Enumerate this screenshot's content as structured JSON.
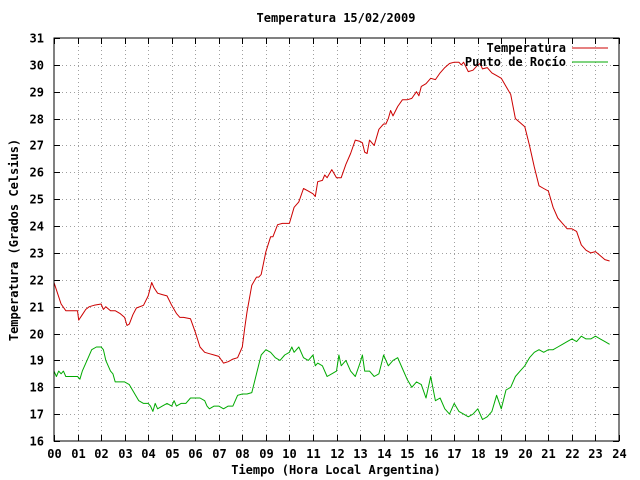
{
  "chart_data": {
    "type": "line",
    "title": "Temperatura 15/02/2009",
    "xlabel": "Tiempo (Hora Local Argentina)",
    "ylabel": "Temperatura (Grados Celsius)",
    "xlim": [
      0,
      24
    ],
    "ylim": [
      16,
      31
    ],
    "xticks": [
      "00",
      "01",
      "02",
      "03",
      "04",
      "05",
      "06",
      "07",
      "08",
      "09",
      "10",
      "11",
      "12",
      "13",
      "14",
      "15",
      "16",
      "17",
      "18",
      "19",
      "20",
      "21",
      "22",
      "23",
      "24"
    ],
    "yticks": [
      16,
      17,
      18,
      19,
      20,
      21,
      22,
      23,
      24,
      25,
      26,
      27,
      28,
      29,
      30,
      31
    ],
    "grid": true,
    "legend_position": "top-right",
    "series": [
      {
        "name": "Temperatura",
        "color": "#cc0000",
        "x": [
          0.0,
          0.15,
          0.3,
          0.5,
          0.8,
          1.0,
          1.05,
          1.2,
          1.35,
          1.5,
          1.7,
          2.0,
          2.1,
          2.2,
          2.4,
          2.6,
          2.8,
          3.0,
          3.1,
          3.2,
          3.35,
          3.5,
          3.8,
          4.0,
          4.15,
          4.25,
          4.4,
          4.6,
          4.8,
          5.0,
          5.2,
          5.35,
          5.5,
          5.8,
          6.0,
          6.2,
          6.4,
          6.6,
          6.8,
          7.0,
          7.2,
          7.4,
          7.6,
          7.8,
          8.0,
          8.1,
          8.2,
          8.4,
          8.6,
          8.7,
          8.8,
          9.0,
          9.2,
          9.3,
          9.5,
          9.7,
          10.0,
          10.2,
          10.4,
          10.6,
          10.8,
          11.0,
          11.1,
          11.2,
          11.4,
          11.5,
          11.6,
          11.8,
          12.0,
          12.2,
          12.4,
          12.6,
          12.8,
          13.0,
          13.1,
          13.2,
          13.3,
          13.4,
          13.6,
          13.8,
          14.0,
          14.1,
          14.2,
          14.3,
          14.4,
          14.6,
          14.8,
          15.0,
          15.2,
          15.4,
          15.5,
          15.6,
          15.8,
          16.0,
          16.2,
          16.4,
          16.6,
          16.8,
          17.0,
          17.2,
          17.3,
          17.4,
          17.6,
          17.8,
          18.0,
          18.1,
          18.2,
          18.4,
          18.6,
          18.8,
          19.0,
          19.2,
          19.4,
          19.6,
          19.8,
          20.0,
          20.2,
          20.4,
          20.6,
          20.8,
          21.0,
          21.2,
          21.4,
          21.6,
          21.8,
          22.0,
          22.2,
          22.4,
          22.6,
          22.8,
          23.0,
          23.2,
          23.4,
          23.6
        ],
        "values": [
          21.9,
          21.5,
          21.1,
          20.85,
          20.85,
          20.85,
          20.5,
          20.7,
          20.9,
          21.0,
          21.05,
          21.1,
          20.9,
          21.0,
          20.85,
          20.85,
          20.75,
          20.6,
          20.3,
          20.35,
          20.7,
          20.95,
          21.05,
          21.4,
          21.9,
          21.7,
          21.5,
          21.45,
          21.4,
          21.05,
          20.75,
          20.6,
          20.6,
          20.55,
          20.05,
          19.5,
          19.3,
          19.25,
          19.2,
          19.15,
          18.9,
          18.95,
          19.05,
          19.1,
          19.5,
          20.2,
          20.8,
          21.8,
          22.1,
          22.1,
          22.2,
          23.05,
          23.6,
          23.6,
          24.05,
          24.1,
          24.1,
          24.7,
          24.9,
          25.4,
          25.3,
          25.2,
          25.1,
          25.65,
          25.7,
          25.9,
          25.8,
          26.1,
          25.8,
          25.8,
          26.3,
          26.7,
          27.2,
          27.15,
          27.1,
          26.75,
          26.7,
          27.2,
          27.0,
          27.6,
          27.8,
          27.8,
          28.0,
          28.3,
          28.1,
          28.45,
          28.7,
          28.7,
          28.75,
          29.0,
          28.85,
          29.2,
          29.3,
          29.5,
          29.45,
          29.7,
          29.9,
          30.05,
          30.1,
          30.1,
          30.0,
          30.1,
          29.75,
          29.8,
          30.0,
          30.05,
          29.85,
          29.9,
          29.7,
          29.6,
          29.5,
          29.2,
          28.9,
          28.0,
          27.85,
          27.7,
          27.0,
          26.2,
          25.5,
          25.4,
          25.3,
          24.7,
          24.3,
          24.1,
          23.9,
          23.9,
          23.8,
          23.3,
          23.1,
          23.0,
          23.05,
          22.9,
          22.75,
          22.7
        ]
      },
      {
        "name": "Punto de Rocío",
        "color": "#00aa00",
        "x": [
          0.0,
          0.1,
          0.2,
          0.3,
          0.4,
          0.5,
          0.7,
          0.9,
          1.0,
          1.1,
          1.2,
          1.4,
          1.6,
          1.8,
          2.0,
          2.1,
          2.2,
          2.4,
          2.5,
          2.6,
          2.8,
          3.0,
          3.2,
          3.4,
          3.6,
          3.8,
          4.0,
          4.1,
          4.2,
          4.3,
          4.4,
          4.6,
          4.8,
          5.0,
          5.1,
          5.2,
          5.4,
          5.6,
          5.8,
          6.0,
          6.2,
          6.4,
          6.5,
          6.6,
          6.8,
          7.0,
          7.2,
          7.4,
          7.6,
          7.8,
          8.0,
          8.2,
          8.4,
          8.6,
          8.8,
          9.0,
          9.2,
          9.4,
          9.6,
          9.8,
          10.0,
          10.1,
          10.2,
          10.4,
          10.6,
          10.8,
          11.0,
          11.1,
          11.2,
          11.4,
          11.6,
          11.8,
          12.0,
          12.1,
          12.2,
          12.4,
          12.6,
          12.8,
          13.0,
          13.1,
          13.2,
          13.4,
          13.6,
          13.8,
          14.0,
          14.2,
          14.4,
          14.6,
          14.8,
          15.0,
          15.2,
          15.4,
          15.6,
          15.8,
          16.0,
          16.2,
          16.4,
          16.6,
          16.8,
          17.0,
          17.2,
          17.4,
          17.6,
          17.8,
          18.0,
          18.2,
          18.4,
          18.6,
          18.8,
          19.0,
          19.2,
          19.4,
          19.6,
          19.8,
          20.0,
          20.2,
          20.4,
          20.6,
          20.8,
          21.0,
          21.2,
          21.4,
          21.6,
          21.8,
          22.0,
          22.2,
          22.4,
          22.6,
          22.8,
          23.0,
          23.2,
          23.4,
          23.6
        ],
        "values": [
          18.6,
          18.4,
          18.6,
          18.5,
          18.6,
          18.4,
          18.4,
          18.4,
          18.4,
          18.3,
          18.6,
          19.0,
          19.4,
          19.5,
          19.5,
          19.4,
          19.0,
          18.6,
          18.5,
          18.2,
          18.2,
          18.2,
          18.1,
          17.8,
          17.5,
          17.4,
          17.4,
          17.3,
          17.1,
          17.4,
          17.2,
          17.3,
          17.4,
          17.3,
          17.5,
          17.3,
          17.4,
          17.4,
          17.6,
          17.6,
          17.6,
          17.5,
          17.3,
          17.2,
          17.3,
          17.3,
          17.2,
          17.3,
          17.3,
          17.7,
          17.75,
          17.75,
          17.8,
          18.5,
          19.2,
          19.4,
          19.3,
          19.1,
          19.0,
          19.2,
          19.3,
          19.5,
          19.3,
          19.5,
          19.1,
          19.0,
          19.2,
          18.8,
          18.9,
          18.8,
          18.4,
          18.5,
          18.6,
          19.2,
          18.8,
          19.0,
          18.6,
          18.4,
          18.9,
          19.2,
          18.6,
          18.6,
          18.4,
          18.5,
          19.2,
          18.8,
          19.0,
          19.1,
          18.7,
          18.3,
          18.0,
          18.2,
          18.1,
          17.6,
          18.4,
          17.5,
          17.6,
          17.2,
          17.0,
          17.4,
          17.1,
          17.0,
          16.9,
          17.0,
          17.2,
          16.8,
          16.9,
          17.1,
          17.7,
          17.2,
          17.9,
          18.0,
          18.4,
          18.6,
          18.8,
          19.1,
          19.3,
          19.4,
          19.3,
          19.4,
          19.4,
          19.5,
          19.6,
          19.7,
          19.8,
          19.7,
          19.9,
          19.8,
          19.8,
          19.9,
          19.8,
          19.7,
          19.6
        ]
      }
    ]
  }
}
